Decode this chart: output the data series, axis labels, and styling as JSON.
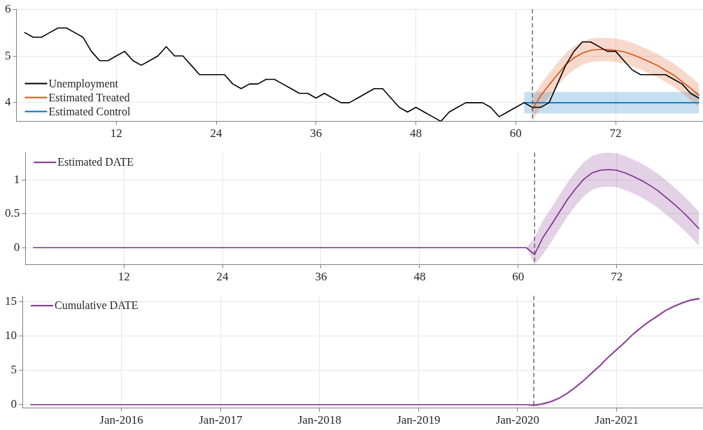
{
  "chart_data": [
    {
      "type": "line",
      "xlim": [
        0,
        82.5
      ],
      "xticks": [
        12,
        24,
        36,
        48,
        60,
        72
      ],
      "ylim": [
        3.6,
        6
      ],
      "yticks": [
        4,
        5,
        6
      ],
      "grid": true,
      "legend": "bottom left",
      "marker": "none",
      "line_style": "solid",
      "ref_lines": [
        {
          "axis": "x",
          "value": 62,
          "color": "#555555",
          "line_style": "dashed"
        }
      ],
      "series": [
        {
          "name": "Unemployment",
          "color": "#000000",
          "x": [
            1,
            2,
            3,
            4,
            5,
            6,
            7,
            8,
            9,
            10,
            11,
            12,
            13,
            14,
            15,
            16,
            17,
            18,
            19,
            20,
            21,
            22,
            23,
            24,
            25,
            26,
            27,
            28,
            29,
            30,
            31,
            32,
            33,
            34,
            35,
            36,
            37,
            38,
            39,
            40,
            41,
            42,
            43,
            44,
            45,
            46,
            47,
            48,
            49,
            50,
            51,
            52,
            53,
            54,
            55,
            56,
            57,
            58,
            59,
            60,
            61,
            62,
            63,
            64,
            65,
            66,
            67,
            68,
            69,
            70,
            71,
            72,
            73,
            74,
            75,
            76,
            77,
            78,
            79,
            80,
            81,
            82
          ],
          "values": [
            5.5,
            5.4,
            5.4,
            5.5,
            5.6,
            5.6,
            5.5,
            5.4,
            5.1,
            4.9,
            4.9,
            5.0,
            5.1,
            4.9,
            4.8,
            4.9,
            5.0,
            5.2,
            5.0,
            5.0,
            4.8,
            4.6,
            4.6,
            4.6,
            4.6,
            4.4,
            4.3,
            4.4,
            4.4,
            4.5,
            4.5,
            4.4,
            4.3,
            4.2,
            4.2,
            4.1,
            4.2,
            4.1,
            4.0,
            4.0,
            4.1,
            4.2,
            4.3,
            4.3,
            4.1,
            3.9,
            3.8,
            3.9,
            3.8,
            3.7,
            3.6,
            3.8,
            3.9,
            4.0,
            4.0,
            4.0,
            3.9,
            3.7,
            3.8,
            3.9,
            4.0,
            3.9,
            3.9,
            4.0,
            4.4,
            4.8,
            5.1,
            5.3,
            5.3,
            5.2,
            5.1,
            5.1,
            4.9,
            4.7,
            4.6,
            4.6,
            4.6,
            4.6,
            4.5,
            4.4,
            4.2,
            4.1
          ]
        },
        {
          "name": "Estimated Treated",
          "color": "#d95319",
          "x": [
            62,
            63,
            64,
            65,
            66,
            67,
            68,
            69,
            70,
            71,
            72,
            73,
            74,
            75,
            76,
            77,
            78,
            79,
            80,
            81,
            82
          ],
          "values": [
            3.86,
            4.15,
            4.38,
            4.6,
            4.81,
            4.96,
            5.06,
            5.12,
            5.14,
            5.14,
            5.12,
            5.09,
            5.03,
            4.96,
            4.88,
            4.8,
            4.69,
            4.59,
            4.45,
            4.31,
            4.16
          ],
          "lower": [
            3.61,
            3.9,
            4.13,
            4.35,
            4.56,
            4.71,
            4.81,
            4.87,
            4.89,
            4.89,
            4.87,
            4.84,
            4.78,
            4.71,
            4.63,
            4.55,
            4.44,
            4.34,
            4.2,
            4.06,
            3.91
          ],
          "upper": [
            4.11,
            4.4,
            4.63,
            4.85,
            5.06,
            5.21,
            5.31,
            5.37,
            5.39,
            5.39,
            5.37,
            5.34,
            5.28,
            5.21,
            5.13,
            5.05,
            4.94,
            4.84,
            4.7,
            4.56,
            4.41
          ]
        },
        {
          "name": "Estimated Control",
          "color": "#0072bd",
          "x": [
            61,
            82
          ],
          "values": [
            4.0,
            4.0
          ],
          "lower": [
            3.77,
            3.77
          ],
          "upper": [
            4.23,
            4.23
          ]
        }
      ]
    },
    {
      "type": "line",
      "xlim": [
        0,
        82.5
      ],
      "xticks": [
        12,
        24,
        36,
        48,
        60,
        72
      ],
      "ylim": [
        -0.25,
        1.4
      ],
      "yticks": [
        0,
        0.5,
        1
      ],
      "grid": true,
      "legend": "top left",
      "marker": "none",
      "line_style": "solid",
      "ref_lines": [
        {
          "axis": "x",
          "value": 62,
          "color": "#555555",
          "line_style": "dashed"
        }
      ],
      "series": [
        {
          "name": "Estimated DATE",
          "color": "#7e2f8e",
          "x": [
            1,
            2,
            3,
            4,
            5,
            6,
            7,
            8,
            9,
            10,
            11,
            12,
            13,
            14,
            15,
            16,
            17,
            18,
            19,
            20,
            21,
            22,
            23,
            24,
            25,
            26,
            27,
            28,
            29,
            30,
            31,
            32,
            33,
            34,
            35,
            36,
            37,
            38,
            39,
            40,
            41,
            42,
            43,
            44,
            45,
            46,
            47,
            48,
            49,
            50,
            51,
            52,
            53,
            54,
            55,
            56,
            57,
            58,
            59,
            60,
            61,
            62,
            63,
            64,
            65,
            66,
            67,
            68,
            69,
            70,
            71,
            72,
            73,
            74,
            75,
            76,
            77,
            78,
            79,
            80,
            81,
            82
          ],
          "values": [
            0,
            0,
            0,
            0,
            0,
            0,
            0,
            0,
            0,
            0,
            0,
            0,
            0,
            0,
            0,
            0,
            0,
            0,
            0,
            0,
            0,
            0,
            0,
            0,
            0,
            0,
            0,
            0,
            0,
            0,
            0,
            0,
            0,
            0,
            0,
            0,
            0,
            0,
            0,
            0,
            0,
            0,
            0,
            0,
            0,
            0,
            0,
            0,
            0,
            0,
            0,
            0,
            0,
            0,
            0,
            0,
            0,
            0,
            0,
            0,
            0,
            -0.1,
            0.15,
            0.33,
            0.52,
            0.71,
            0.87,
            1.01,
            1.1,
            1.14,
            1.15,
            1.14,
            1.1,
            1.05,
            0.99,
            0.92,
            0.84,
            0.74,
            0.64,
            0.53,
            0.41,
            0.28
          ],
          "lower": [
            null,
            null,
            null,
            null,
            null,
            null,
            null,
            null,
            null,
            null,
            null,
            null,
            null,
            null,
            null,
            null,
            null,
            null,
            null,
            null,
            null,
            null,
            null,
            null,
            null,
            null,
            null,
            null,
            null,
            null,
            null,
            null,
            null,
            null,
            null,
            null,
            null,
            null,
            null,
            null,
            null,
            null,
            null,
            null,
            null,
            null,
            null,
            null,
            null,
            null,
            null,
            null,
            null,
            null,
            null,
            null,
            null,
            null,
            null,
            null,
            0,
            -0.25,
            -0.1,
            0.08,
            0.27,
            0.46,
            0.62,
            0.76,
            0.85,
            0.89,
            0.9,
            0.89,
            0.85,
            0.8,
            0.74,
            0.67,
            0.59,
            0.49,
            0.39,
            0.28,
            0.16,
            0.03
          ],
          "upper": [
            null,
            null,
            null,
            null,
            null,
            null,
            null,
            null,
            null,
            null,
            null,
            null,
            null,
            null,
            null,
            null,
            null,
            null,
            null,
            null,
            null,
            null,
            null,
            null,
            null,
            null,
            null,
            null,
            null,
            null,
            null,
            null,
            null,
            null,
            null,
            null,
            null,
            null,
            null,
            null,
            null,
            null,
            null,
            null,
            null,
            null,
            null,
            null,
            null,
            null,
            null,
            null,
            null,
            null,
            null,
            null,
            null,
            null,
            null,
            null,
            0,
            0.15,
            0.4,
            0.58,
            0.77,
            0.96,
            1.12,
            1.26,
            1.35,
            1.39,
            1.4,
            1.39,
            1.35,
            1.3,
            1.24,
            1.17,
            1.09,
            0.99,
            0.89,
            0.78,
            0.66,
            0.53
          ]
        }
      ]
    },
    {
      "type": "line",
      "xlim": [
        "2015-01",
        "2021-11-15"
      ],
      "xticks": [
        {
          "value": "2016-01",
          "label": "Jan-2016"
        },
        {
          "value": "2017-01",
          "label": "Jan-2017"
        },
        {
          "value": "2018-01",
          "label": "Jan-2018"
        },
        {
          "value": "2019-01",
          "label": "Jan-2019"
        },
        {
          "value": "2020-01",
          "label": "Jan-2020"
        },
        {
          "value": "2021-01",
          "label": "Jan-2021"
        }
      ],
      "ylim": [
        -0.5,
        15.8
      ],
      "yticks": [
        0,
        5,
        10,
        15
      ],
      "grid": true,
      "legend": "top left",
      "marker": "none",
      "line_style": "solid",
      "ref_lines": [
        {
          "axis": "x",
          "value": "2020-03",
          "color": "#555555",
          "line_style": "dashed"
        }
      ],
      "series": [
        {
          "name": "Cumulative DATE",
          "color": "#7e2f8e",
          "x": [
            "2015-02",
            "2015-03",
            "2015-04",
            "2015-05",
            "2015-06",
            "2015-07",
            "2015-08",
            "2015-09",
            "2015-10",
            "2015-11",
            "2015-12",
            "2016-01",
            "2016-02",
            "2016-03",
            "2016-04",
            "2016-05",
            "2016-06",
            "2016-07",
            "2016-08",
            "2016-09",
            "2016-10",
            "2016-11",
            "2016-12",
            "2017-01",
            "2017-02",
            "2017-03",
            "2017-04",
            "2017-05",
            "2017-06",
            "2017-07",
            "2017-08",
            "2017-09",
            "2017-10",
            "2017-11",
            "2017-12",
            "2018-01",
            "2018-02",
            "2018-03",
            "2018-04",
            "2018-05",
            "2018-06",
            "2018-07",
            "2018-08",
            "2018-09",
            "2018-10",
            "2018-11",
            "2018-12",
            "2019-01",
            "2019-02",
            "2019-03",
            "2019-04",
            "2019-05",
            "2019-06",
            "2019-07",
            "2019-08",
            "2019-09",
            "2019-10",
            "2019-11",
            "2019-12",
            "2020-01",
            "2020-02",
            "2020-03",
            "2020-04",
            "2020-05",
            "2020-06",
            "2020-07",
            "2020-08",
            "2020-09",
            "2020-10",
            "2020-11",
            "2020-12",
            "2021-01",
            "2021-02",
            "2021-03",
            "2021-04",
            "2021-05",
            "2021-06",
            "2021-07",
            "2021-08",
            "2021-09",
            "2021-10",
            "2021-11"
          ],
          "values": [
            0,
            0,
            0,
            0,
            0,
            0,
            0,
            0,
            0,
            0,
            0,
            0,
            0,
            0,
            0,
            0,
            0,
            0,
            0,
            0,
            0,
            0,
            0,
            0,
            0,
            0,
            0,
            0,
            0,
            0,
            0,
            0,
            0,
            0,
            0,
            0,
            0,
            0,
            0,
            0,
            0,
            0,
            0,
            0,
            0,
            0,
            0,
            0,
            0,
            0,
            0,
            0,
            0,
            0,
            0,
            0,
            0,
            0,
            0,
            0,
            0,
            -0.1,
            0.1,
            0.4,
            0.9,
            1.6,
            2.5,
            3.5,
            4.6,
            5.7,
            6.9,
            8.0,
            9.1,
            10.2,
            11.2,
            12.1,
            12.9,
            13.7,
            14.3,
            14.8,
            15.2,
            15.4
          ],
          "lower": [
            null,
            null,
            null,
            null,
            null,
            null,
            null,
            null,
            null,
            null,
            null,
            null,
            null,
            null,
            null,
            null,
            null,
            null,
            null,
            null,
            null,
            null,
            null,
            null,
            null,
            null,
            null,
            null,
            null,
            null,
            null,
            null,
            null,
            null,
            null,
            null,
            null,
            null,
            null,
            null,
            null,
            null,
            null,
            null,
            null,
            null,
            null,
            null,
            null,
            null,
            null,
            null,
            null,
            null,
            null,
            null,
            null,
            null,
            null,
            null,
            0,
            -0.3,
            -0.1,
            0.2,
            0.7,
            1.4,
            2.3,
            3.3,
            4.4,
            5.5,
            6.7,
            7.8,
            8.9,
            10.0,
            11.0,
            11.9,
            12.7,
            13.5,
            14.1,
            14.6,
            15.0,
            15.2
          ],
          "upper": [
            null,
            null,
            null,
            null,
            null,
            null,
            null,
            null,
            null,
            null,
            null,
            null,
            null,
            null,
            null,
            null,
            null,
            null,
            null,
            null,
            null,
            null,
            null,
            null,
            null,
            null,
            null,
            null,
            null,
            null,
            null,
            null,
            null,
            null,
            null,
            null,
            null,
            null,
            null,
            null,
            null,
            null,
            null,
            null,
            null,
            null,
            null,
            null,
            null,
            null,
            null,
            null,
            null,
            null,
            null,
            null,
            null,
            null,
            null,
            null,
            0,
            0.1,
            0.3,
            0.6,
            1.1,
            1.8,
            2.7,
            3.7,
            4.8,
            5.9,
            7.1,
            8.2,
            9.3,
            10.4,
            11.4,
            12.3,
            13.1,
            13.9,
            14.5,
            15.0,
            15.4,
            15.6
          ]
        }
      ]
    }
  ]
}
